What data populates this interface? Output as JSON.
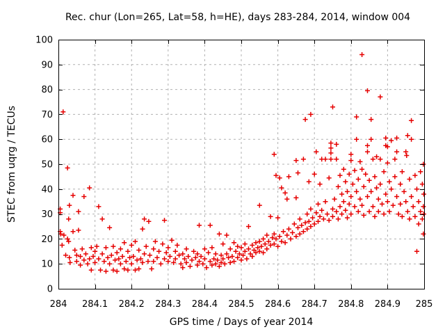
{
  "figure": {
    "background": "#ffffff"
  },
  "chart_data": {
    "type": "scatter",
    "title": "Rec. chur (Lon=265, Lat=58, h=HE), days 283-284, 2014, window 004",
    "xlabel": "GPS time / Days of year 2014",
    "ylabel": "STEC from uqrg / TECUs",
    "xlim": [
      284,
      285
    ],
    "ylim": [
      0,
      100
    ],
    "xticks": [
      284,
      284.1,
      284.2,
      284.3,
      284.4,
      284.5,
      284.6,
      284.7,
      284.8,
      284.9,
      285
    ],
    "xtick_labels": [
      "284",
      "284.1",
      "284.2",
      "284.3",
      "284.4",
      "284.5",
      "284.6",
      "284.7",
      "284.8",
      "284.9",
      "285"
    ],
    "yticks": [
      0,
      10,
      20,
      30,
      40,
      50,
      60,
      70,
      80,
      90,
      100
    ],
    "grid": true,
    "legend_position": "none",
    "marker": {
      "shape": "plus",
      "color": "#e60000",
      "size": 7,
      "stroke_width": 1.5
    },
    "grid_color": "#b0b0b0",
    "border_color": "#000000",
    "points": [
      [
        284.005,
        32
      ],
      [
        284.005,
        30.5
      ],
      [
        284.006,
        22
      ],
      [
        284.005,
        23
      ],
      [
        284.013,
        71
      ],
      [
        284.01,
        17.5
      ],
      [
        284.015,
        21.5
      ],
      [
        284.02,
        13.5
      ],
      [
        284.025,
        48.5
      ],
      [
        284.025,
        20
      ],
      [
        284.028,
        28
      ],
      [
        284.028,
        19
      ],
      [
        284.03,
        33.5
      ],
      [
        284.03,
        12.5
      ],
      [
        284.032,
        10.5
      ],
      [
        284.04,
        37.5
      ],
      [
        284.04,
        23
      ],
      [
        284.045,
        15.5
      ],
      [
        284.05,
        13.5
      ],
      [
        284.05,
        11
      ],
      [
        284.055,
        31
      ],
      [
        284.055,
        23.5
      ],
      [
        284.06,
        9.5
      ],
      [
        284.06,
        13
      ],
      [
        284.065,
        16
      ],
      [
        284.07,
        37
      ],
      [
        284.07,
        11.5
      ],
      [
        284.075,
        14
      ],
      [
        284.08,
        10
      ],
      [
        284.085,
        40.5
      ],
      [
        284.085,
        12
      ],
      [
        284.09,
        16.5
      ],
      [
        284.09,
        7.5
      ],
      [
        284.095,
        13
      ],
      [
        284.1,
        15
      ],
      [
        284.1,
        10.5
      ],
      [
        284.105,
        17
      ],
      [
        284.11,
        33
      ],
      [
        284.11,
        12
      ],
      [
        284.115,
        7.5
      ],
      [
        284.12,
        28
      ],
      [
        284.12,
        14
      ],
      [
        284.125,
        11
      ],
      [
        284.13,
        16.5
      ],
      [
        284.13,
        7
      ],
      [
        284.135,
        12.5
      ],
      [
        284.14,
        24.5
      ],
      [
        284.14,
        10
      ],
      [
        284.145,
        13.5
      ],
      [
        284.15,
        17
      ],
      [
        284.15,
        7.5
      ],
      [
        284.155,
        11.5
      ],
      [
        284.16,
        14.5
      ],
      [
        284.16,
        7
      ],
      [
        284.165,
        12
      ],
      [
        284.17,
        16
      ],
      [
        284.17,
        10
      ],
      [
        284.175,
        13
      ],
      [
        284.18,
        18.5
      ],
      [
        284.18,
        8
      ],
      [
        284.185,
        11
      ],
      [
        284.19,
        15
      ],
      [
        284.19,
        7.5
      ],
      [
        284.195,
        12.5
      ],
      [
        284.2,
        17.5
      ],
      [
        284.2,
        10
      ],
      [
        284.205,
        13
      ],
      [
        284.21,
        19
      ],
      [
        284.21,
        7.5
      ],
      [
        284.215,
        11.5
      ],
      [
        284.22,
        15.5
      ],
      [
        284.22,
        8
      ],
      [
        284.225,
        12
      ],
      [
        284.23,
        24
      ],
      [
        284.23,
        10.5
      ],
      [
        284.235,
        28
      ],
      [
        284.235,
        14
      ],
      [
        284.24,
        17
      ],
      [
        284.245,
        11
      ],
      [
        284.247,
        27
      ],
      [
        284.25,
        13.5
      ],
      [
        284.255,
        8
      ],
      [
        284.26,
        16
      ],
      [
        284.26,
        11
      ],
      [
        284.265,
        19
      ],
      [
        284.27,
        12.5
      ],
      [
        284.275,
        15
      ],
      [
        284.28,
        10
      ],
      [
        284.285,
        18
      ],
      [
        284.29,
        27.5
      ],
      [
        284.29,
        12
      ],
      [
        284.295,
        14.5
      ],
      [
        284.3,
        11
      ],
      [
        284.3,
        16.5
      ],
      [
        284.305,
        13
      ],
      [
        284.31,
        19.5
      ],
      [
        284.315,
        10.5
      ],
      [
        284.32,
        15
      ],
      [
        284.32,
        12
      ],
      [
        284.325,
        17.5
      ],
      [
        284.33,
        13.5
      ],
      [
        284.335,
        10
      ],
      [
        284.34,
        14
      ],
      [
        284.34,
        8.5
      ],
      [
        284.345,
        12
      ],
      [
        284.35,
        16
      ],
      [
        284.35,
        10.5
      ],
      [
        284.355,
        13
      ],
      [
        284.36,
        9
      ],
      [
        284.365,
        11.5
      ],
      [
        284.37,
        15
      ],
      [
        284.375,
        12.5
      ],
      [
        284.38,
        9.5
      ],
      [
        284.38,
        14
      ],
      [
        284.385,
        25.5
      ],
      [
        284.385,
        11
      ],
      [
        284.39,
        13
      ],
      [
        284.395,
        10
      ],
      [
        284.4,
        16
      ],
      [
        284.4,
        12
      ],
      [
        284.405,
        8.5
      ],
      [
        284.41,
        14.5
      ],
      [
        284.415,
        25.5
      ],
      [
        284.415,
        11
      ],
      [
        284.42,
        9.5
      ],
      [
        284.42,
        16.5
      ],
      [
        284.425,
        12
      ],
      [
        284.43,
        10
      ],
      [
        284.43,
        14
      ],
      [
        284.435,
        11.5
      ],
      [
        284.44,
        22
      ],
      [
        284.44,
        9
      ],
      [
        284.445,
        13.5
      ],
      [
        284.445,
        10.5
      ],
      [
        284.45,
        12
      ],
      [
        284.45,
        18
      ],
      [
        284.455,
        10
      ],
      [
        284.46,
        14
      ],
      [
        284.46,
        21.5
      ],
      [
        284.465,
        12.5
      ],
      [
        284.47,
        16
      ],
      [
        284.47,
        10.5
      ],
      [
        284.475,
        13
      ],
      [
        284.48,
        18.5
      ],
      [
        284.48,
        11
      ],
      [
        284.485,
        15
      ],
      [
        284.49,
        12.5
      ],
      [
        284.49,
        17
      ],
      [
        284.495,
        14
      ],
      [
        284.5,
        11.5
      ],
      [
        284.5,
        16.5
      ],
      [
        284.505,
        13.5
      ],
      [
        284.51,
        18
      ],
      [
        284.51,
        15
      ],
      [
        284.515,
        12
      ],
      [
        284.52,
        25
      ],
      [
        284.52,
        16
      ],
      [
        284.525,
        14
      ],
      [
        284.53,
        17.5
      ],
      [
        284.53,
        13
      ],
      [
        284.535,
        15.5
      ],
      [
        284.54,
        18.5
      ],
      [
        284.54,
        14.5
      ],
      [
        284.545,
        16.5
      ],
      [
        284.55,
        33.5
      ],
      [
        284.55,
        19
      ],
      [
        284.55,
        15
      ],
      [
        284.555,
        17
      ],
      [
        284.56,
        20
      ],
      [
        284.56,
        14.5
      ],
      [
        284.565,
        18
      ],
      [
        284.57,
        21.5
      ],
      [
        284.57,
        16
      ],
      [
        284.575,
        19
      ],
      [
        284.58,
        29
      ],
      [
        284.58,
        17.5
      ],
      [
        284.585,
        20.5
      ],
      [
        284.59,
        54
      ],
      [
        284.59,
        22
      ],
      [
        284.59,
        18
      ],
      [
        284.595,
        45.5
      ],
      [
        284.595,
        20
      ],
      [
        284.6,
        28.5
      ],
      [
        284.6,
        17
      ],
      [
        284.605,
        44.5
      ],
      [
        284.605,
        21
      ],
      [
        284.61,
        40.5
      ],
      [
        284.61,
        19
      ],
      [
        284.615,
        23
      ],
      [
        284.62,
        38.5
      ],
      [
        284.62,
        18.5
      ],
      [
        284.625,
        36
      ],
      [
        284.625,
        21.5
      ],
      [
        284.63,
        45
      ],
      [
        284.63,
        24
      ],
      [
        284.635,
        20
      ],
      [
        284.64,
        22.5
      ],
      [
        284.645,
        26
      ],
      [
        284.65,
        51.5
      ],
      [
        284.65,
        36.5
      ],
      [
        284.65,
        21
      ],
      [
        284.655,
        46.5
      ],
      [
        284.655,
        24.5
      ],
      [
        284.66,
        28
      ],
      [
        284.66,
        22
      ],
      [
        284.665,
        25.5
      ],
      [
        284.67,
        52
      ],
      [
        284.67,
        23
      ],
      [
        284.675,
        68
      ],
      [
        284.675,
        26.5
      ],
      [
        284.68,
        30
      ],
      [
        284.68,
        24
      ],
      [
        284.685,
        43
      ],
      [
        284.685,
        27
      ],
      [
        284.69,
        70
      ],
      [
        284.69,
        32
      ],
      [
        284.69,
        25
      ],
      [
        284.695,
        28.5
      ],
      [
        284.7,
        46
      ],
      [
        284.7,
        26
      ],
      [
        284.705,
        55
      ],
      [
        284.705,
        30.5
      ],
      [
        284.71,
        34
      ],
      [
        284.71,
        27
      ],
      [
        284.715,
        42
      ],
      [
        284.715,
        29
      ],
      [
        284.72,
        52
      ],
      [
        284.72,
        31.5
      ],
      [
        284.725,
        28
      ],
      [
        284.73,
        52
      ],
      [
        284.73,
        35
      ],
      [
        284.735,
        30
      ],
      [
        284.74,
        44.5
      ],
      [
        284.74,
        27.5
      ],
      [
        284.745,
        58.5
      ],
      [
        284.745,
        56.5
      ],
      [
        284.745,
        54.5
      ],
      [
        284.745,
        52
      ],
      [
        284.75,
        73
      ],
      [
        284.75,
        32
      ],
      [
        284.75,
        29
      ],
      [
        284.755,
        36
      ],
      [
        284.76,
        58
      ],
      [
        284.76,
        52
      ],
      [
        284.76,
        31
      ],
      [
        284.765,
        41
      ],
      [
        284.765,
        28
      ],
      [
        284.77,
        45.5
      ],
      [
        284.77,
        33
      ],
      [
        284.775,
        38
      ],
      [
        284.775,
        30
      ],
      [
        284.78,
        48
      ],
      [
        284.78,
        35
      ],
      [
        284.785,
        43
      ],
      [
        284.785,
        31.5
      ],
      [
        284.79,
        39
      ],
      [
        284.79,
        28.5
      ],
      [
        284.795,
        46
      ],
      [
        284.795,
        34
      ],
      [
        284.8,
        54
      ],
      [
        284.8,
        51.5
      ],
      [
        284.8,
        37
      ],
      [
        284.8,
        30
      ],
      [
        284.805,
        42
      ],
      [
        284.81,
        47.5
      ],
      [
        284.81,
        33
      ],
      [
        284.815,
        69
      ],
      [
        284.815,
        60
      ],
      [
        284.815,
        39
      ],
      [
        284.82,
        44
      ],
      [
        284.82,
        31
      ],
      [
        284.825,
        51
      ],
      [
        284.825,
        36
      ],
      [
        284.83,
        94
      ],
      [
        284.83,
        48
      ],
      [
        284.83,
        33.5
      ],
      [
        284.835,
        41
      ],
      [
        284.835,
        29.5
      ],
      [
        284.84,
        46
      ],
      [
        284.845,
        79.5
      ],
      [
        284.845,
        57.5
      ],
      [
        284.845,
        55
      ],
      [
        284.845,
        37
      ],
      [
        284.85,
        43.5
      ],
      [
        284.85,
        31
      ],
      [
        284.855,
        68
      ],
      [
        284.855,
        60
      ],
      [
        284.855,
        39
      ],
      [
        284.86,
        52
      ],
      [
        284.86,
        33
      ],
      [
        284.865,
        45
      ],
      [
        284.865,
        29
      ],
      [
        284.87,
        53
      ],
      [
        284.87,
        40.5
      ],
      [
        284.875,
        36
      ],
      [
        284.875,
        31
      ],
      [
        284.88,
        77
      ],
      [
        284.88,
        52
      ],
      [
        284.88,
        42
      ],
      [
        284.885,
        34
      ],
      [
        284.89,
        47
      ],
      [
        284.89,
        30
      ],
      [
        284.895,
        60.5
      ],
      [
        284.895,
        57.5
      ],
      [
        284.895,
        38
      ],
      [
        284.9,
        57
      ],
      [
        284.9,
        50.5
      ],
      [
        284.9,
        35
      ],
      [
        284.905,
        43
      ],
      [
        284.905,
        31
      ],
      [
        284.91,
        59.5
      ],
      [
        284.91,
        40
      ],
      [
        284.915,
        33.5
      ],
      [
        284.92,
        52
      ],
      [
        284.92,
        45
      ],
      [
        284.925,
        60.5
      ],
      [
        284.925,
        55
      ],
      [
        284.925,
        37
      ],
      [
        284.93,
        30
      ],
      [
        284.935,
        42
      ],
      [
        284.935,
        34
      ],
      [
        284.94,
        47
      ],
      [
        284.94,
        29
      ],
      [
        284.945,
        39
      ],
      [
        284.95,
        55
      ],
      [
        284.95,
        35
      ],
      [
        284.952,
        53.5
      ],
      [
        284.955,
        61.5
      ],
      [
        284.955,
        31
      ],
      [
        284.96,
        44
      ],
      [
        284.96,
        28
      ],
      [
        284.965,
        67.5
      ],
      [
        284.965,
        60
      ],
      [
        284.965,
        37
      ],
      [
        284.97,
        33
      ],
      [
        284.975,
        45.5
      ],
      [
        284.975,
        29
      ],
      [
        284.98,
        40
      ],
      [
        284.98,
        15
      ],
      [
        284.985,
        35
      ],
      [
        284.985,
        26
      ],
      [
        284.99,
        47
      ],
      [
        284.99,
        31
      ],
      [
        284.995,
        42
      ],
      [
        284.995,
        28
      ],
      [
        284.998,
        50
      ],
      [
        284.998,
        33
      ],
      [
        284.998,
        22
      ],
      [
        284.999,
        38
      ],
      [
        284.999,
        30
      ]
    ]
  }
}
